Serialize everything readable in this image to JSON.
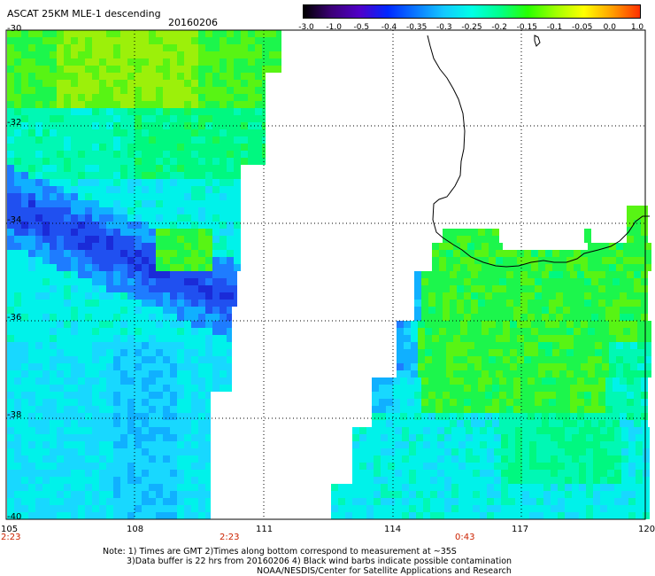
{
  "header": {
    "title": "ASCAT 25KM MLE-1 descending",
    "date": "20160206"
  },
  "colorbar": {
    "labels": [
      "-3.0",
      "-1.0",
      "-0.5",
      "-0.4",
      "-0.35",
      "-0.3",
      "-0.25",
      "-0.2",
      "-0.15",
      "-0.1",
      "-0.05",
      "0.0",
      "1.0"
    ],
    "colors": [
      "#000000",
      "#3c0078",
      "#5000c8",
      "#0028ff",
      "#0a78ff",
      "#14c8ff",
      "#00ffe6",
      "#00ff8c",
      "#28ff00",
      "#a0ff00",
      "#ffff00",
      "#ffa000",
      "#ff3000"
    ]
  },
  "axes": {
    "lat_labels": [
      "-30",
      "-32",
      "-34",
      "-36",
      "-38",
      "-40"
    ],
    "lon_labels": [
      "105",
      "108",
      "111",
      "114",
      "117",
      "120"
    ]
  },
  "pass_times": [
    "2:23",
    "2:23",
    "0:43"
  ],
  "notes": [
    "Note: 1) Times are GMT 2)Times along bottom correspond to measurement at ~35S",
    "3)Data buffer is 22 hrs from 20160206 4) Black wind barbs indicate possible contamination",
    "NOAA/NESDIS/Center for Satellite Applications and Research"
  ]
}
